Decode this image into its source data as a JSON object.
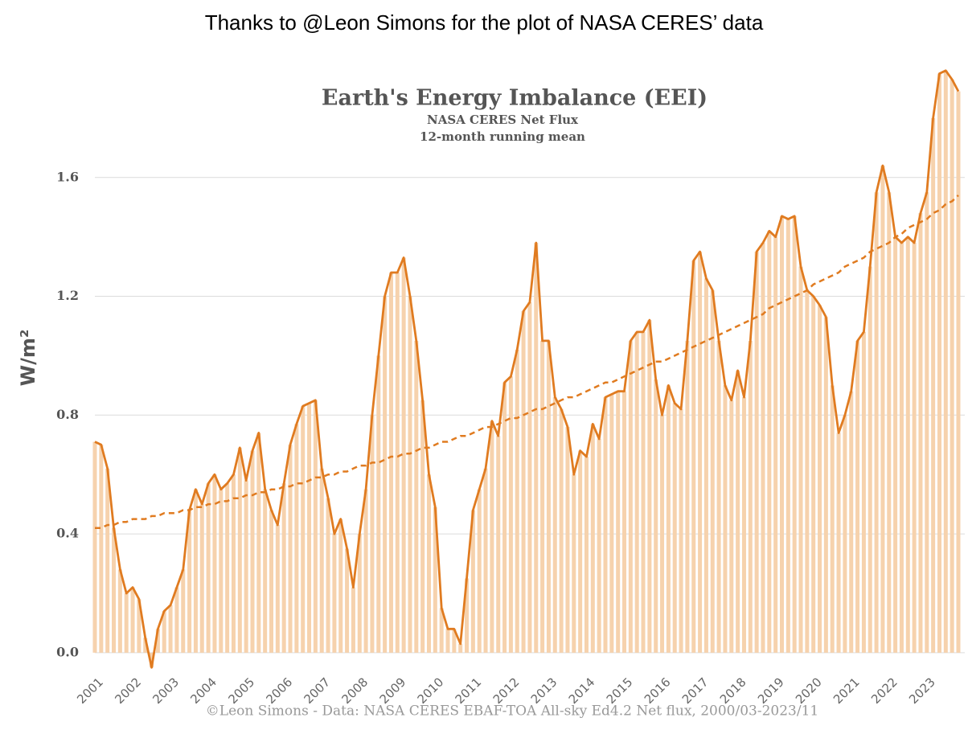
{
  "header": "Thanks to @Leon Simons for the plot of NASA CERES’ data",
  "chart_data": {
    "type": "line",
    "title": "Earth's Energy Imbalance (EEI)",
    "subtitle": [
      "NASA CERES Net Flux",
      "12-month running mean"
    ],
    "ylabel": "W/m²",
    "source": "©Leon Simons - Data: NASA CERES EBAF-TOA All-sky Ed4.2 Net flux, 2000/03-2023/11",
    "categories": [
      "2001",
      null,
      null,
      null,
      null,
      null,
      "2002",
      null,
      null,
      null,
      null,
      null,
      "2003",
      null,
      null,
      null,
      null,
      null,
      "2004",
      null,
      null,
      null,
      null,
      null,
      "2005",
      null,
      null,
      null,
      null,
      null,
      "2006",
      null,
      null,
      null,
      null,
      null,
      "2007",
      null,
      null,
      null,
      null,
      null,
      "2008",
      null,
      null,
      null,
      null,
      null,
      "2009",
      null,
      null,
      null,
      null,
      null,
      "2010",
      null,
      null,
      null,
      null,
      null,
      "2011",
      null,
      null,
      null,
      null,
      null,
      "2012",
      null,
      null,
      null,
      null,
      null,
      "2013",
      null,
      null,
      null,
      null,
      null,
      "2014",
      null,
      null,
      null,
      null,
      null,
      "2015",
      null,
      null,
      null,
      null,
      null,
      "2016",
      null,
      null,
      null,
      null,
      null,
      "2017",
      null,
      null,
      null,
      null,
      null,
      "2018",
      null,
      null,
      null,
      null,
      null,
      "2019",
      null,
      null,
      null,
      null,
      null,
      "2020",
      null,
      null,
      null,
      null,
      null,
      "2021",
      null,
      null,
      null,
      null,
      null,
      "2022",
      null,
      null,
      null,
      null,
      null,
      "2023",
      null,
      null,
      null,
      null,
      null
    ],
    "series": [
      {
        "color": "#e07b20",
        "bar_color": "#f6d2ad",
        "style": "solid",
        "values": [
          0.71,
          0.7,
          0.62,
          0.42,
          0.28,
          0.2,
          0.22,
          0.18,
          0.05,
          -0.05,
          0.08,
          0.14,
          0.16,
          0.22,
          0.28,
          0.48,
          0.55,
          0.5,
          0.57,
          0.6,
          0.55,
          0.57,
          0.6,
          0.69,
          0.58,
          0.68,
          0.74,
          0.55,
          0.48,
          0.43,
          0.57,
          0.7,
          0.77,
          0.83,
          0.84,
          0.85,
          0.62,
          0.52,
          0.4,
          0.45,
          0.35,
          0.22,
          0.4,
          0.55,
          0.8,
          1.0,
          1.2,
          1.28,
          1.28,
          1.33,
          1.2,
          1.05,
          0.85,
          0.6,
          0.49,
          0.15,
          0.08,
          0.08,
          0.03,
          0.25,
          0.48,
          0.55,
          0.62,
          0.78,
          0.73,
          0.91,
          0.93,
          1.02,
          1.15,
          1.18,
          1.38,
          1.05,
          1.05,
          0.86,
          0.82,
          0.76,
          0.6,
          0.68,
          0.66,
          0.77,
          0.72,
          0.86,
          0.87,
          0.88,
          0.88,
          1.05,
          1.08,
          1.08,
          1.12,
          0.92,
          0.8,
          0.9,
          0.84,
          0.82,
          1.05,
          1.32,
          1.35,
          1.26,
          1.22,
          1.05,
          0.9,
          0.85,
          0.95,
          0.86,
          1.05,
          1.35,
          1.38,
          1.42,
          1.4,
          1.47,
          1.46,
          1.47,
          1.3,
          1.22,
          1.2,
          1.17,
          1.13,
          0.9,
          0.74,
          0.8,
          0.88,
          1.05,
          1.08,
          1.3,
          1.55,
          1.64,
          1.55,
          1.4,
          1.38,
          1.4,
          1.38,
          1.48,
          1.55,
          1.8,
          1.95,
          1.96,
          1.93,
          1.89
        ]
      },
      {
        "color": "#e07b20",
        "style": "dashed",
        "values": [
          0.42,
          0.42,
          0.43,
          0.43,
          0.44,
          0.44,
          0.45,
          0.45,
          0.45,
          0.46,
          0.46,
          0.47,
          0.47,
          0.47,
          0.48,
          0.48,
          0.49,
          0.49,
          0.5,
          0.5,
          0.51,
          0.51,
          0.52,
          0.52,
          0.53,
          0.53,
          0.54,
          0.54,
          0.55,
          0.55,
          0.56,
          0.56,
          0.57,
          0.57,
          0.58,
          0.59,
          0.59,
          0.6,
          0.6,
          0.61,
          0.61,
          0.62,
          0.63,
          0.63,
          0.64,
          0.64,
          0.65,
          0.66,
          0.66,
          0.67,
          0.67,
          0.68,
          0.69,
          0.69,
          0.7,
          0.71,
          0.71,
          0.72,
          0.73,
          0.73,
          0.74,
          0.75,
          0.76,
          0.76,
          0.77,
          0.78,
          0.79,
          0.79,
          0.8,
          0.81,
          0.82,
          0.82,
          0.83,
          0.84,
          0.85,
          0.86,
          0.86,
          0.87,
          0.88,
          0.89,
          0.9,
          0.91,
          0.91,
          0.92,
          0.93,
          0.94,
          0.95,
          0.96,
          0.97,
          0.98,
          0.98,
          0.99,
          1.0,
          1.01,
          1.02,
          1.03,
          1.04,
          1.05,
          1.06,
          1.07,
          1.08,
          1.09,
          1.1,
          1.11,
          1.12,
          1.13,
          1.14,
          1.16,
          1.17,
          1.18,
          1.19,
          1.2,
          1.21,
          1.22,
          1.24,
          1.25,
          1.26,
          1.27,
          1.28,
          1.3,
          1.31,
          1.32,
          1.33,
          1.35,
          1.36,
          1.37,
          1.38,
          1.4,
          1.41,
          1.43,
          1.44,
          1.45,
          1.46,
          1.48,
          1.49,
          1.51,
          1.52,
          1.54
        ]
      }
    ],
    "ylim": [
      -0.06,
      2.0
    ],
    "yticks": [
      {
        "value": 0,
        "label": "0.0"
      },
      0.4,
      0.8,
      1.2,
      1.6
    ],
    "grid": true
  }
}
